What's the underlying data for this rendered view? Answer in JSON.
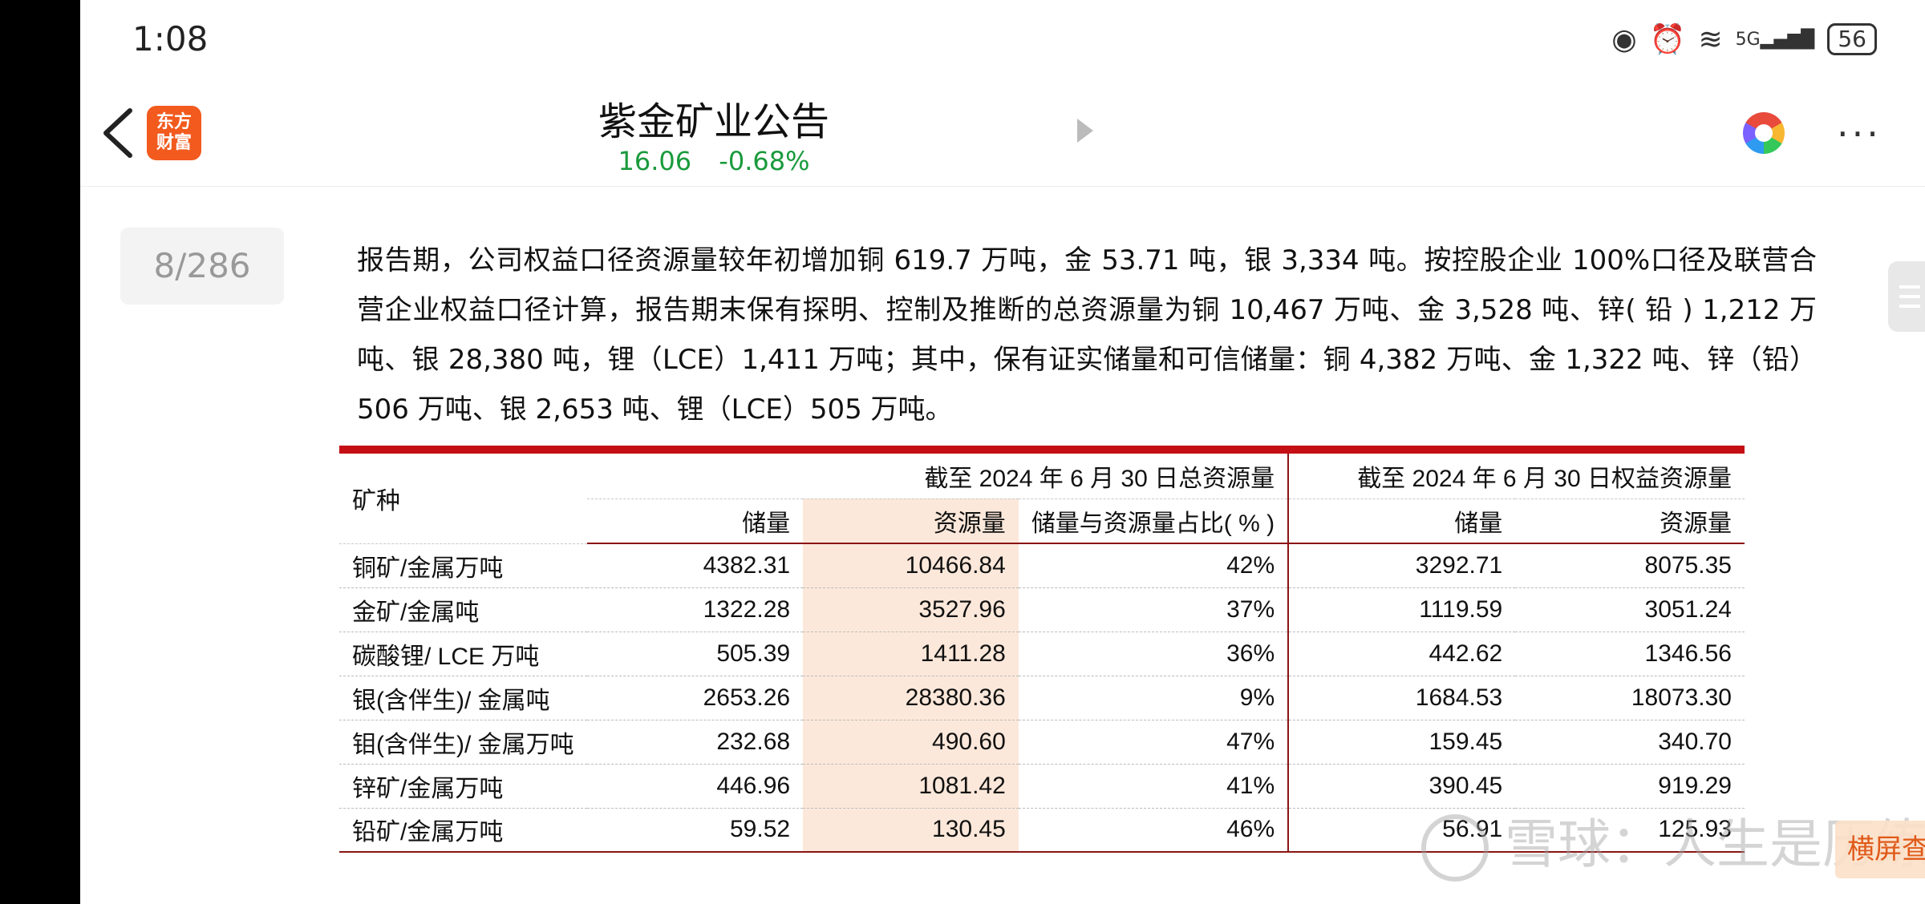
{
  "status_bar": {
    "time": "1:08",
    "battery": "56",
    "network": "5G"
  },
  "header": {
    "app_logo_text": "东方\n财富",
    "title": "紫金矿业公告",
    "price": "16.06",
    "change": "-0.68%"
  },
  "page_indicator": "8/286",
  "paragraph": "报告期，公司权益口径资源量较年初增加铜 619.7 万吨，金 53.71 吨，银 3,334 吨。按控股企业 100%口径及联营合营企业权益口径计算，报告期末保有探明、控制及推断的总资源量为铜 10,467 万吨、金 3,528 吨、锌( 铅 ) 1,212 万吨、银 28,380 吨，锂（LCE）1,411 万吨；其中，保有证实储量和可信储量：铜 4,382 万吨、金 1,322 吨、锌（铅）506 万吨、银 2,653 吨、锂（LCE）505 万吨。",
  "table": {
    "mine_type_label": "矿种",
    "group_total": "截至 2024 年 6 月 30 日总资源量",
    "group_equity": "截至 2024 年 6 月 30 日权益资源量",
    "headers": [
      "储量",
      "资源量",
      "储量与资源量占比( % )",
      "储量",
      "资源量"
    ],
    "rows": [
      [
        "铜矿/金属万吨",
        "4382.31",
        "10466.84",
        "42%",
        "3292.71",
        "8075.35"
      ],
      [
        "金矿/金属吨",
        "1322.28",
        "3527.96",
        "37%",
        "1119.59",
        "3051.24"
      ],
      [
        "碳酸锂/ LCE 万吨",
        "505.39",
        "1411.28",
        "36%",
        "442.62",
        "1346.56"
      ],
      [
        "银(含伴生)/ 金属吨",
        "2653.26",
        "28380.36",
        "9%",
        "1684.53",
        "18073.30"
      ],
      [
        "钼(含伴生)/ 金属万吨",
        "232.68",
        "490.60",
        "47%",
        "159.45",
        "340.70"
      ],
      [
        "锌矿/金属万吨",
        "446.96",
        "1081.42",
        "41%",
        "390.45",
        "919.29"
      ],
      [
        "铅矿/金属万吨",
        "59.52",
        "130.45",
        "46%",
        "56.91",
        "125.93"
      ]
    ]
  },
  "watermark": "雪球：人生是历练",
  "landscape_button": "横屏查看"
}
